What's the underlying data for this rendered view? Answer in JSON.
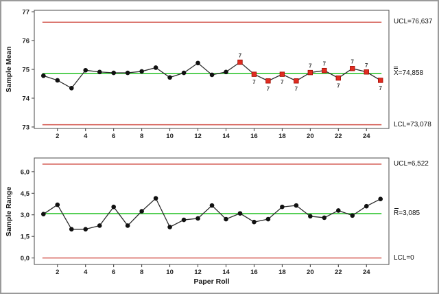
{
  "figure": {
    "background": "#ffffff",
    "border_color": "#9a9a9a"
  },
  "colors": {
    "control_limit_line": "#cf4a41",
    "center_line": "#57d057",
    "series_line": "#2b2b2b",
    "marker_fill": "#111111",
    "flag_marker_fill": "#e02c21",
    "flag_marker_stroke": "#9e0b00",
    "flag_text": "#3c3c3c",
    "plot_border": "#4a4a4a",
    "tick": "#333333"
  },
  "chart_data": [
    {
      "type": "line",
      "name": "xbar-chart",
      "title": "",
      "ylabel": "Sample Mean",
      "xlabel": "",
      "x": [
        1,
        2,
        3,
        4,
        5,
        6,
        7,
        8,
        9,
        10,
        11,
        12,
        13,
        14,
        15,
        16,
        17,
        18,
        19,
        20,
        21,
        22,
        23,
        24,
        25
      ],
      "values": [
        74.78,
        74.62,
        74.35,
        74.97,
        74.91,
        74.88,
        74.88,
        74.93,
        75.06,
        74.72,
        74.88,
        75.22,
        74.81,
        74.91,
        75.25,
        74.83,
        74.6,
        74.83,
        74.6,
        74.89,
        74.96,
        74.7,
        75.03,
        74.91,
        74.62
      ],
      "ucl": 76.637,
      "center": 74.858,
      "lcl": 73.078,
      "labels": {
        "ucl": "UCL=76,637",
        "center_symbol": "X",
        "center_overbars": 2,
        "center_value": "=74,858",
        "lcl": "LCL=73,078"
      },
      "yticks": [
        77,
        76,
        75,
        74,
        73
      ],
      "ytick_labels": [
        "77",
        "76",
        "75",
        "74",
        "73"
      ],
      "xticks": [
        2,
        4,
        6,
        8,
        10,
        12,
        14,
        16,
        18,
        20,
        22,
        24
      ],
      "ylim": [
        72.95,
        77.05
      ],
      "xlim": [
        0.35,
        25.6
      ],
      "grid": false,
      "legend": "none",
      "flags": [
        {
          "x": 15,
          "label": "7",
          "side": "above"
        },
        {
          "x": 16,
          "label": "7",
          "side": "below"
        },
        {
          "x": 17,
          "label": "7",
          "side": "below"
        },
        {
          "x": 18,
          "label": "7",
          "side": "below"
        },
        {
          "x": 19,
          "label": "7",
          "side": "below"
        },
        {
          "x": 20,
          "label": "7",
          "side": "above"
        },
        {
          "x": 21,
          "label": "7",
          "side": "above"
        },
        {
          "x": 22,
          "label": "7",
          "side": "below"
        },
        {
          "x": 23,
          "label": "7",
          "side": "above"
        },
        {
          "x": 24,
          "label": "7",
          "side": "above"
        },
        {
          "x": 25,
          "label": "7",
          "side": "below"
        }
      ]
    },
    {
      "type": "line",
      "name": "r-chart",
      "title": "",
      "ylabel": "Sample Range",
      "xlabel": "Paper Roll",
      "x": [
        1,
        2,
        3,
        4,
        5,
        6,
        7,
        8,
        9,
        10,
        11,
        12,
        13,
        14,
        15,
        16,
        17,
        18,
        19,
        20,
        21,
        22,
        23,
        24,
        25
      ],
      "values": [
        3.05,
        3.7,
        2.0,
        2.0,
        2.25,
        3.55,
        2.25,
        3.25,
        4.15,
        2.15,
        2.65,
        2.75,
        3.65,
        2.7,
        3.1,
        2.5,
        2.7,
        3.55,
        3.65,
        2.9,
        2.8,
        3.3,
        2.95,
        3.6,
        4.1
      ],
      "ucl": 6.522,
      "center": 3.085,
      "lcl": 0,
      "labels": {
        "ucl": "UCL=6,522",
        "center_symbol": "R",
        "center_overbars": 1,
        "center_value": "=3,085",
        "lcl": "LCL=0"
      },
      "yticks": [
        6,
        4.5,
        3,
        1.5,
        0
      ],
      "ytick_labels": [
        "6,0",
        "4,5",
        "3,0",
        "1,5",
        "0,0"
      ],
      "xticks": [
        2,
        4,
        6,
        8,
        10,
        12,
        14,
        16,
        18,
        20,
        22,
        24
      ],
      "ylim": [
        -0.45,
        6.95
      ],
      "xlim": [
        0.35,
        25.6
      ],
      "grid": false,
      "legend": "none",
      "flags": []
    }
  ]
}
